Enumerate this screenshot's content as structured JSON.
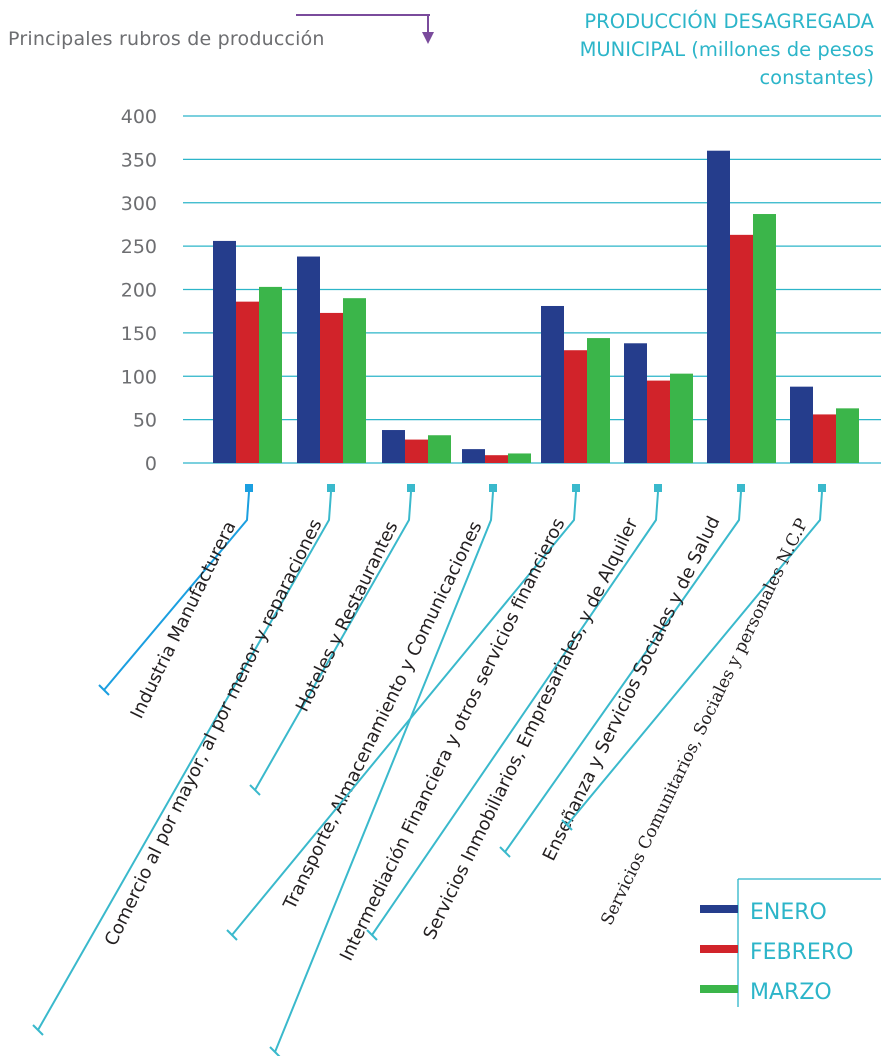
{
  "header": {
    "subtitle": "Principales rubros de producción",
    "title": "PRODUCCIÓN DESAGREGADA MUNICIPAL (millones de pesos constantes)"
  },
  "chart_data": {
    "type": "bar",
    "title": "PRODUCCIÓN DESAGREGADA MUNICIPAL (millones de pesos constantes)",
    "xlabel": "",
    "ylabel": "",
    "ylim": [
      0,
      400
    ],
    "yticks": [
      0,
      50,
      100,
      150,
      200,
      250,
      300,
      350,
      400
    ],
    "grid": true,
    "legend_position": "bottom-right",
    "categories": [
      "Industria Manufacturera",
      "Comercio al por mayor, al por menor y reparaciones",
      "Hoteles y Restaurantes",
      "Transporte, Almacenamiento y Comunicaciones",
      "Intermediación Financiera y otros servicios financieros",
      "Servicios Inmobiliarios, Empresariales, y de Alquiler",
      "Enseñanza y Servicios Sociales y de Salud",
      "Servicios Comunitarios, Sociales y personales N.C.P"
    ],
    "series": [
      {
        "name": "ENERO",
        "color": "#253d8c",
        "values": [
          256,
          238,
          38,
          16,
          181,
          138,
          360,
          88
        ]
      },
      {
        "name": "FEBRERO",
        "color": "#d1232a",
        "values": [
          186,
          173,
          27,
          9,
          130,
          95,
          263,
          56
        ]
      },
      {
        "name": "MARZO",
        "color": "#3bb54a",
        "values": [
          203,
          190,
          32,
          11,
          144,
          103,
          287,
          63
        ]
      }
    ]
  }
}
